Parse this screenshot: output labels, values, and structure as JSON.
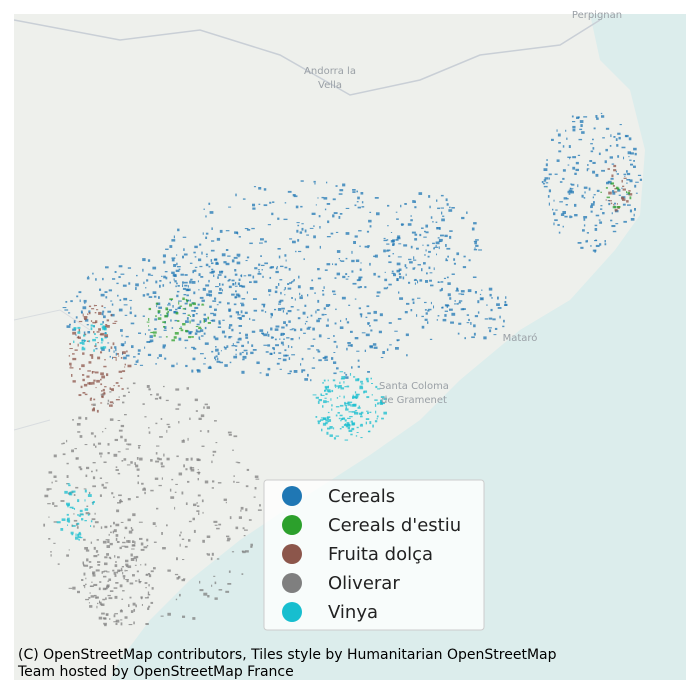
{
  "map": {
    "places": [
      {
        "lines": [
          "Perpignan"
        ]
      },
      {
        "lines": [
          "Andorra la",
          "Vella"
        ]
      },
      {
        "lines": [
          "Mataró"
        ]
      },
      {
        "lines": [
          "Santa Coloma",
          "de Gramenet"
        ]
      }
    ]
  },
  "legend": {
    "items": [
      {
        "label": "Cereals",
        "color": "#1f77b4"
      },
      {
        "label": "Cereals d'estiu",
        "color": "#2ca02c"
      },
      {
        "label": "Fruita dolça",
        "color": "#8c564b"
      },
      {
        "label": "Oliverar",
        "color": "#7f7f7f"
      },
      {
        "label": "Vinya",
        "color": "#17becf"
      }
    ]
  },
  "attribution": {
    "lines": [
      "(C) OpenStreetMap contributors, Tiles style by Humanitarian OpenStreetMap",
      "Team hosted by OpenStreetMap France"
    ]
  }
}
